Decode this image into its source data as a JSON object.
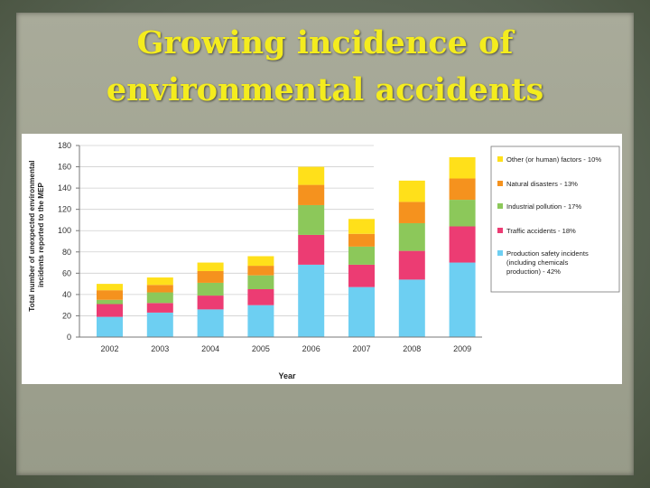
{
  "slide": {
    "title": "Growing incidence of environmental accidents"
  },
  "chart_data": {
    "type": "bar",
    "stacked": true,
    "title": "",
    "xlabel": "Year",
    "ylabel": "Total number of unexpected environmental incidents reported to the MEP",
    "ylabel_lines": [
      "Total number of unexpected environmental",
      "incidents reported to the MEP"
    ],
    "ylim": [
      0,
      180
    ],
    "yticks": [
      0,
      20,
      40,
      60,
      80,
      100,
      120,
      140,
      160,
      180
    ],
    "grid": true,
    "legend_position": "right",
    "categories": [
      "2002",
      "2003",
      "2004",
      "2005",
      "2006",
      "2007",
      "2008",
      "2009"
    ],
    "series": [
      {
        "name": "Production safety incidents (including chemicals production) - 42%",
        "legend_lines": [
          "Production safety incidents",
          "(including chemicals",
          "production) - 42%"
        ],
        "color": "#6dcff2",
        "values": [
          19,
          23,
          26,
          30,
          68,
          47,
          54,
          70
        ]
      },
      {
        "name": "Traffic accidents - 18%",
        "legend_lines": [
          "Traffic accidents - 18%"
        ],
        "color": "#ec3c73",
        "values": [
          12,
          9,
          13,
          15,
          28,
          21,
          27,
          34
        ]
      },
      {
        "name": "Industrial pollution - 17%",
        "legend_lines": [
          "Industrial pollution - 17%"
        ],
        "color": "#8cc85a",
        "values": [
          4,
          10,
          12,
          13,
          28,
          17,
          26,
          25
        ]
      },
      {
        "name": "Natural disasters - 13%",
        "legend_lines": [
          "Natural disasters - 13%"
        ],
        "color": "#f5921e",
        "values": [
          9,
          7,
          11,
          9,
          19,
          12,
          20,
          20
        ]
      },
      {
        "name": "Other (or human) factors - 10%",
        "legend_lines": [
          "Other (or human) factors - 10%"
        ],
        "color": "#ffe01a",
        "values": [
          6,
          7,
          8,
          9,
          17,
          14,
          20,
          20
        ]
      }
    ]
  }
}
